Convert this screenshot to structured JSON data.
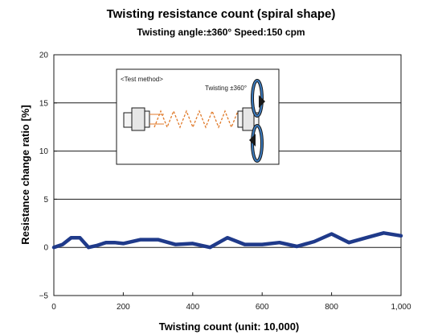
{
  "chart_data": {
    "type": "line",
    "title": "Twisting resistance count (spiral shape)",
    "subtitle": "Twisting angle:±360° Speed:150 cpm",
    "xlabel": "Twisting count (unit: 10,000)",
    "ylabel": "Resistance change ratio [%]",
    "xlim": [
      0,
      1000
    ],
    "ylim": [
      -5,
      20
    ],
    "xticks": [
      0,
      200,
      400,
      600,
      800,
      1000
    ],
    "xtick_labels": [
      "0",
      "200",
      "400",
      "600",
      "800",
      "1,000"
    ],
    "yticks": [
      -5,
      0,
      5,
      10,
      15,
      20
    ],
    "ytick_labels": [
      "−5",
      "0",
      "5",
      "10",
      "15",
      "20"
    ],
    "grid": "horizontal",
    "legend": "none",
    "series": [
      {
        "color": "#1f3a8a",
        "x": [
          0,
          25,
          50,
          75,
          100,
          125,
          150,
          175,
          200,
          250,
          300,
          350,
          400,
          450,
          500,
          550,
          600,
          650,
          700,
          750,
          800,
          850,
          900,
          950,
          1000
        ],
        "y": [
          0.0,
          0.3,
          1.0,
          1.0,
          0.0,
          0.2,
          0.5,
          0.5,
          0.4,
          0.8,
          0.8,
          0.3,
          0.4,
          0.0,
          1.0,
          0.3,
          0.3,
          0.5,
          0.1,
          0.6,
          1.4,
          0.5,
          1.0,
          1.5,
          1.2
        ]
      }
    ],
    "inset": {
      "label": "<Test method>",
      "annotation": "Twisting ±360°"
    }
  }
}
